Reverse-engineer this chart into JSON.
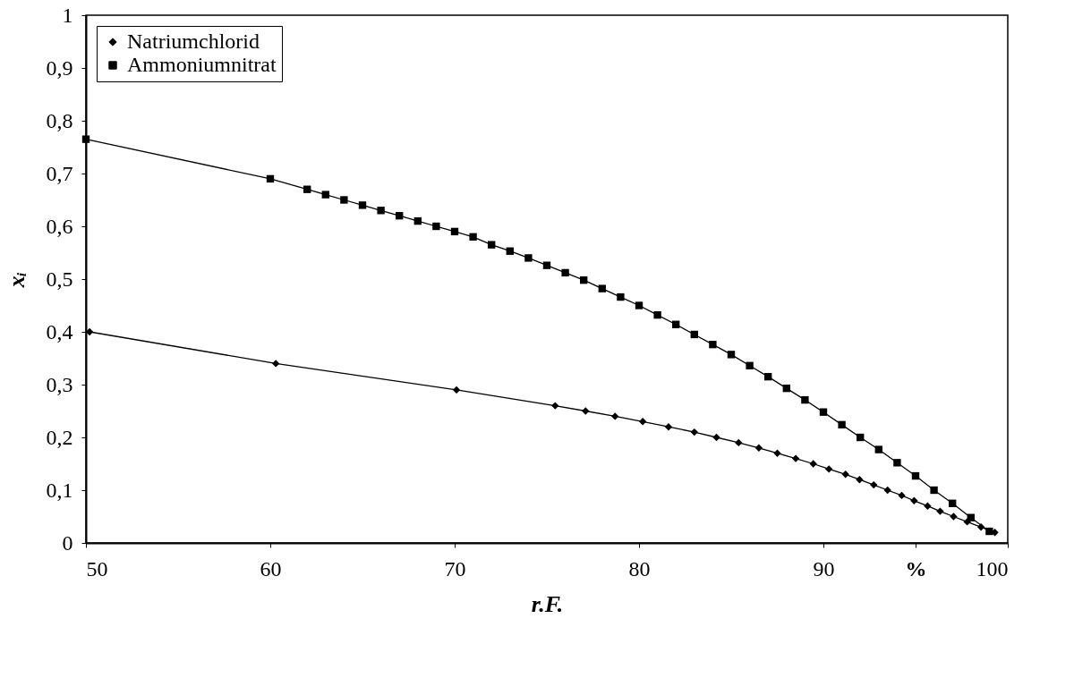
{
  "chart_data": {
    "type": "line",
    "xlabel": "r.F.",
    "ylabel": "xᵢ",
    "xlim": [
      50,
      100
    ],
    "ylim": [
      0,
      1
    ],
    "xticks": [
      50,
      60,
      70,
      80,
      90,
      {
        "value": 95,
        "label": "%"
      },
      100
    ],
    "yticks": [
      0,
      {
        "value": 0.1,
        "label": "0,1"
      },
      {
        "value": 0.2,
        "label": "0,2"
      },
      {
        "value": 0.3,
        "label": "0,3"
      },
      {
        "value": 0.4,
        "label": "0,4"
      },
      {
        "value": 0.5,
        "label": "0,5"
      },
      {
        "value": 0.6,
        "label": "0,6"
      },
      {
        "value": 0.7,
        "label": "0,7"
      },
      {
        "value": 0.8,
        "label": "0,8"
      },
      {
        "value": 0.9,
        "label": "0,9"
      },
      1
    ],
    "grid": false,
    "legend": "top left",
    "series": [
      {
        "name": "Natriumchlorid",
        "color": "#000000",
        "marker": "diamond",
        "x": [
          50.2,
          60.3,
          70.1,
          75.45,
          77.1,
          78.7,
          80.2,
          81.6,
          83.0,
          84.2,
          85.4,
          86.5,
          87.5,
          88.5,
          89.45,
          90.3,
          91.2,
          91.96,
          92.73,
          93.48,
          94.25,
          94.92,
          95.65,
          96.33,
          97.06,
          97.8,
          98.55,
          99.3
        ],
        "values": [
          0.4,
          0.34,
          0.29,
          0.26,
          0.25,
          0.24,
          0.23,
          0.22,
          0.21,
          0.2,
          0.19,
          0.18,
          0.17,
          0.16,
          0.15,
          0.14,
          0.13,
          0.12,
          0.11,
          0.1,
          0.09,
          0.08,
          0.07,
          0.06,
          0.05,
          0.04,
          0.03,
          0.02
        ]
      },
      {
        "name": "Ammoniumnitrat",
        "color": "#000000",
        "marker": "square",
        "x": [
          50,
          60,
          62,
          63,
          64,
          65,
          66,
          67,
          68,
          69,
          70,
          71,
          72,
          73,
          74,
          75,
          76,
          77,
          78,
          79,
          80,
          81,
          82,
          83,
          84,
          85,
          86,
          87,
          88,
          89,
          90,
          91,
          92,
          93,
          94,
          95,
          96,
          97,
          98,
          99
        ],
        "values": [
          0.765,
          0.69,
          0.67,
          0.66,
          0.65,
          0.64,
          0.63,
          0.62,
          0.61,
          0.6,
          0.59,
          0.58,
          0.565,
          0.553,
          0.54,
          0.526,
          0.512,
          0.498,
          0.482,
          0.466,
          0.45,
          0.432,
          0.414,
          0.395,
          0.376,
          0.357,
          0.336,
          0.315,
          0.293,
          0.271,
          0.248,
          0.224,
          0.2,
          0.177,
          0.152,
          0.127,
          0.1,
          0.075,
          0.048,
          0.022
        ]
      }
    ]
  }
}
